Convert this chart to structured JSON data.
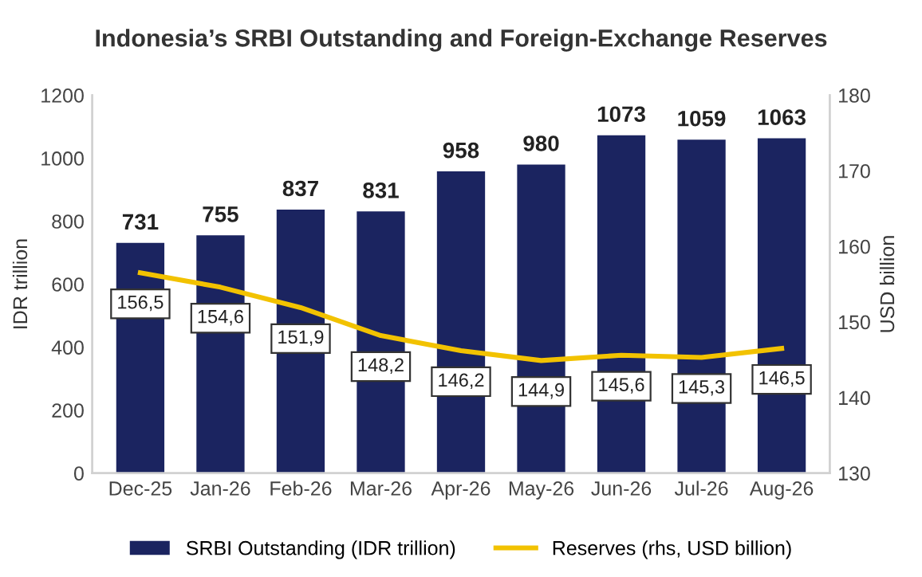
{
  "chart_data": {
    "type": "bar",
    "title": "Indonesia’s SRBI Outstanding and Foreign-Exchange Reserves",
    "ylabel": "IDR trillion",
    "y2label": "USD billion",
    "categories": [
      "Dec-25",
      "Jan-26",
      "Feb-26",
      "Mar-26",
      "Apr-26",
      "May-26",
      "Jun-26",
      "Jul-26",
      "Aug-26"
    ],
    "series": [
      {
        "name": "SRBI Outstanding (IDR trillion)",
        "color": "#1b2460",
        "values": [
          731,
          755,
          837,
          831,
          958,
          980,
          1073,
          1059,
          1063
        ],
        "data_labels": true
      },
      {
        "name": "Reserves (rhs, USD billion)",
        "type": "line",
        "axis": "y2",
        "color": "#f2c200",
        "values": [
          156.5,
          154.6,
          151.9,
          148.2,
          146.2,
          144.9,
          145.6,
          145.3,
          146.5
        ],
        "value_labels": [
          "156,5",
          "154,6",
          "151,9",
          "148,2",
          "146,2",
          "144,9",
          "145,6",
          "145,3",
          "146,5"
        ]
      }
    ],
    "ylim": [
      0,
      1200
    ],
    "yticks": [
      0,
      200,
      400,
      600,
      800,
      1000,
      1200
    ],
    "y2lim": [
      130,
      180
    ],
    "y2ticks": [
      130,
      140,
      150,
      160,
      170,
      180
    ],
    "grid": false,
    "legend": "bottom",
    "marker": "none",
    "line_style": "solid"
  }
}
